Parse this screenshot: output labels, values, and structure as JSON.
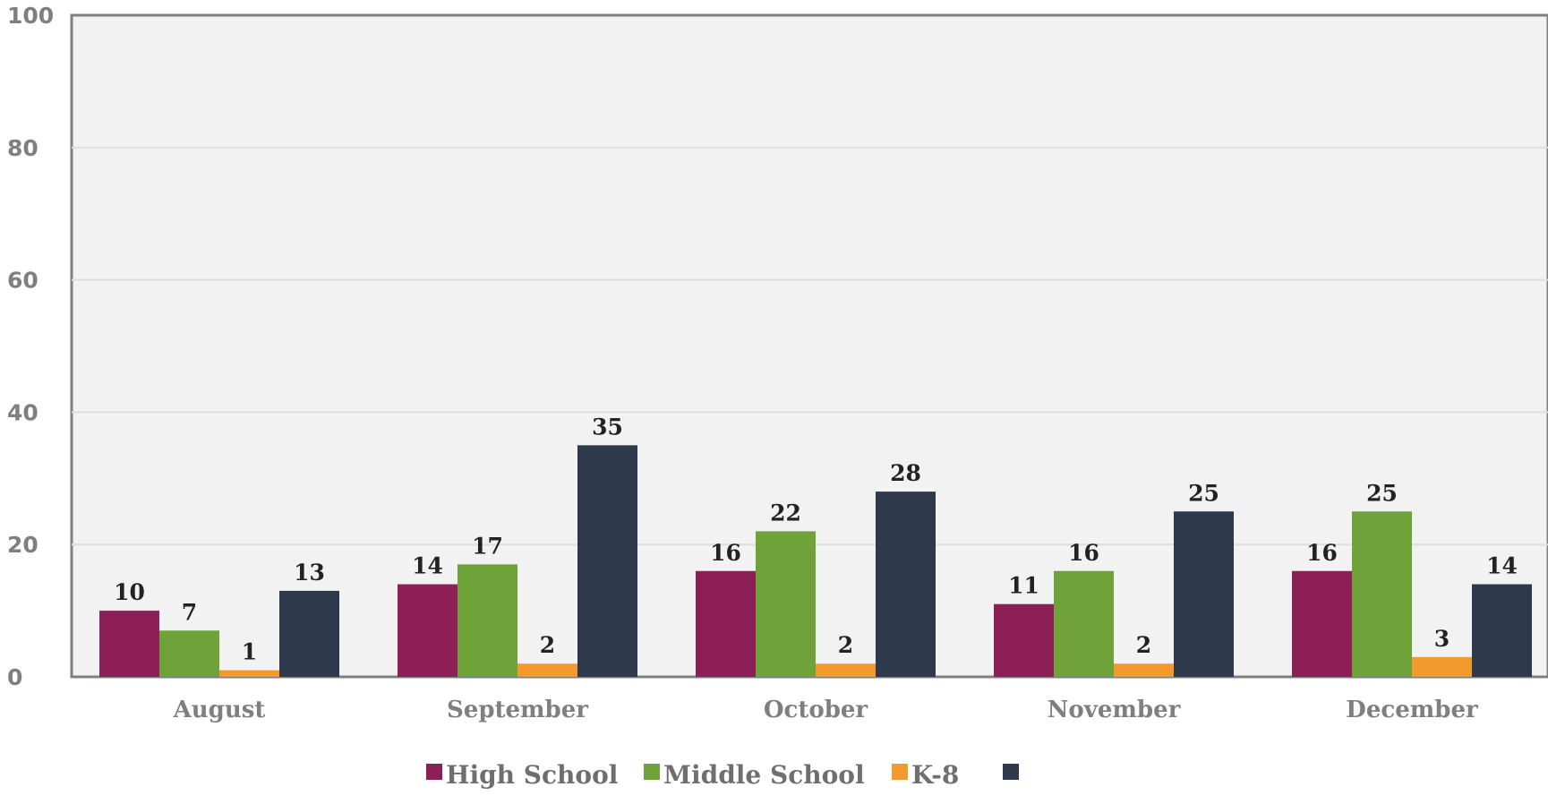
{
  "chart_data": {
    "type": "bar",
    "title": "",
    "xlabel": "",
    "ylabel": "",
    "ylim": [
      0,
      100
    ],
    "yticks": [
      0,
      20,
      40,
      60,
      80,
      100
    ],
    "grid": true,
    "legend_position": "bottom",
    "categories": [
      "August",
      "September",
      "October",
      "November",
      "December"
    ],
    "series": [
      {
        "name": "High School",
        "color": "#8b1f56",
        "values": [
          10,
          14,
          16,
          11,
          16
        ]
      },
      {
        "name": "Middle School",
        "color": "#6fa33a",
        "values": [
          7,
          17,
          22,
          16,
          25
        ]
      },
      {
        "name": "K-8",
        "color": "#f29a2e",
        "values": [
          1,
          2,
          2,
          2,
          3
        ]
      },
      {
        "color": "#2e3a4c",
        "values": [
          13,
          35,
          28,
          25,
          14
        ]
      }
    ]
  }
}
